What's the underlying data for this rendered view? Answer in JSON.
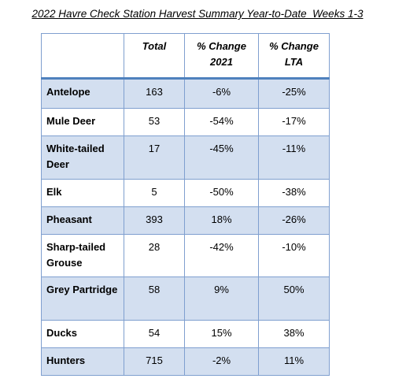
{
  "title": "2022 Havre Check Station Harvest Summary Year-to-Date  Weeks 1-3",
  "table": {
    "header": [
      "",
      "Total",
      "% Change 2021",
      "% Change LTA"
    ],
    "rows": [
      [
        "Antelope",
        "163",
        "-6%",
        "-25%"
      ],
      [
        "Mule Deer",
        "53",
        "-54%",
        "-17%"
      ],
      [
        "White-tailed Deer",
        "17",
        "-45%",
        "-11%"
      ],
      [
        "Elk",
        "5",
        "-50%",
        "-38%"
      ],
      [
        "Pheasant",
        "393",
        "18%",
        "-26%"
      ],
      [
        "Sharp-tailed Grouse",
        "28",
        "-42%",
        "-10%"
      ],
      [
        "Grey Partridge",
        "58",
        "9%",
        "50%"
      ],
      [
        "Ducks",
        "54",
        "15%",
        "38%"
      ],
      [
        "Hunters",
        "715",
        "-2%",
        "11%"
      ]
    ]
  }
}
